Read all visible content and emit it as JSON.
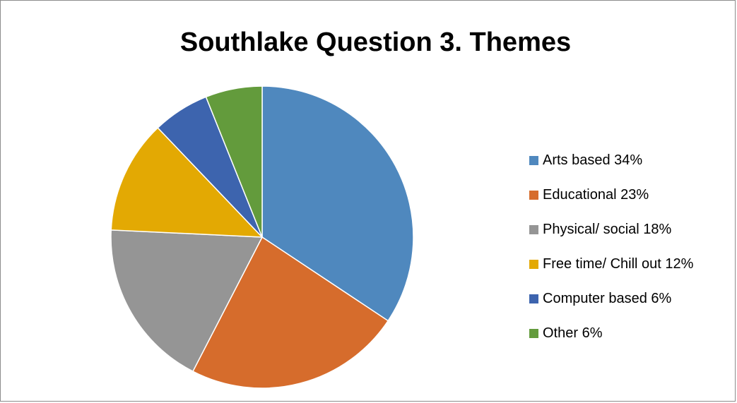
{
  "chart_data": {
    "type": "pie",
    "title": "Southlake Question 3. Themes",
    "legend_position": "right",
    "slices": [
      {
        "label": "Arts based 34%",
        "value": 34,
        "color": "#4F88BE"
      },
      {
        "label": "Educational 23%",
        "value": 23,
        "color": "#D66C2C"
      },
      {
        "label": "Physical/ social 18%",
        "value": 18,
        "color": "#959595"
      },
      {
        "label": "Free time/ Chill out 12%",
        "value": 12,
        "color": "#E3A903"
      },
      {
        "label": "Computer based 6%",
        "value": 6,
        "color": "#3D64AE"
      },
      {
        "label": "Other 6%",
        "value": 6,
        "color": "#639B3C"
      }
    ]
  }
}
